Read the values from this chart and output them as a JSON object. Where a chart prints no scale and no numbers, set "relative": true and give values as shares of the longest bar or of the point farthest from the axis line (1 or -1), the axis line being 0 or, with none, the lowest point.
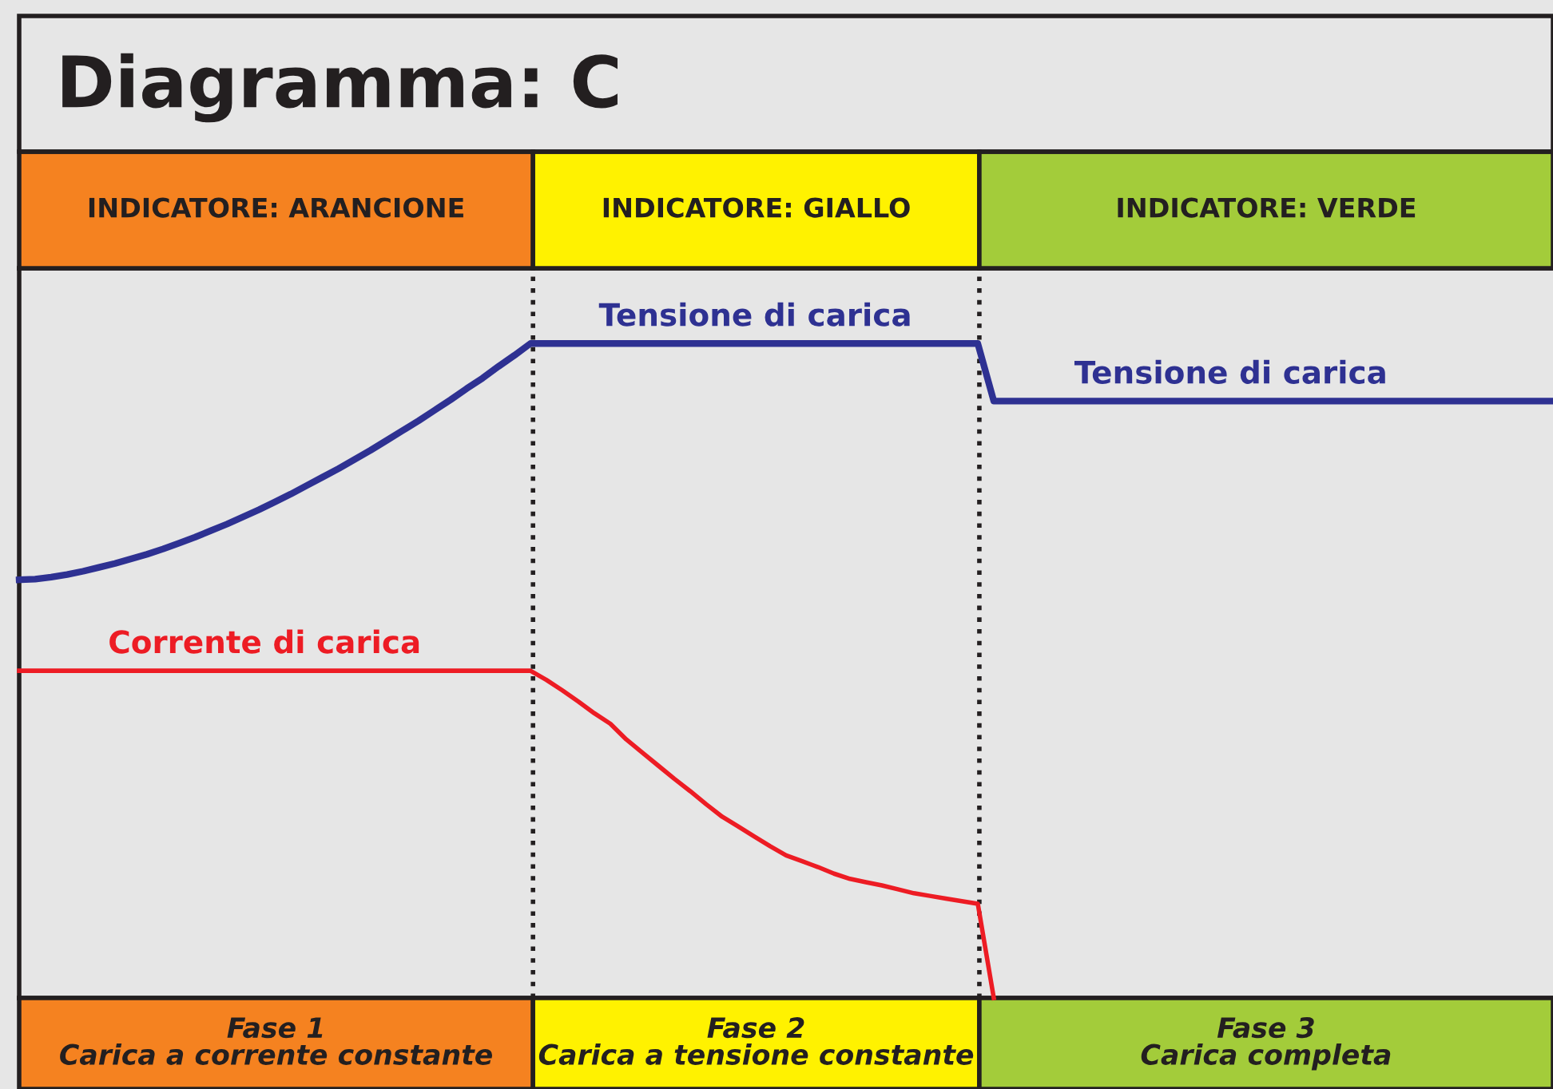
{
  "chart_data": {
    "type": "line",
    "title": "Diagramma: C",
    "relative": true,
    "legend": false,
    "line_style": "solid",
    "categories": [
      null,
      null,
      null,
      null,
      null,
      null,
      null,
      null,
      null,
      null,
      null,
      null,
      null,
      null,
      null,
      null,
      null,
      null,
      null,
      null,
      null,
      null,
      null,
      null,
      null,
      null,
      null,
      null,
      null,
      null,
      null,
      null,
      null,
      null,
      null,
      null,
      null,
      null,
      null,
      null,
      null,
      null,
      null,
      null,
      null,
      null,
      null,
      null,
      null,
      null,
      null,
      null,
      null,
      null,
      null,
      null,
      null,
      null,
      null,
      null,
      null,
      null,
      null,
      null,
      null,
      null,
      null,
      null,
      null,
      null,
      null,
      null,
      null,
      null,
      null,
      null,
      null,
      null,
      null,
      null,
      null,
      null,
      null,
      null,
      null,
      null,
      null,
      null,
      null,
      null,
      null,
      null,
      null,
      null,
      null,
      null,
      null
    ],
    "series": [
      {
        "name": "Tensione di carica",
        "color": "#2e3192",
        "values": [
          0.639,
          0.64,
          0.643,
          0.647,
          0.652,
          0.658,
          0.664,
          0.671,
          0.678,
          0.686,
          0.695,
          0.704,
          0.714,
          0.724,
          0.735,
          0.746,
          0.758,
          0.77,
          0.783,
          0.796,
          0.809,
          0.823,
          0.837,
          0.852,
          0.867,
          0.882,
          0.898,
          0.914,
          0.931,
          0.947,
          0.965,
          0.982,
          1,
          1,
          1,
          1,
          1,
          1,
          1,
          1,
          1,
          1,
          1,
          1,
          1,
          1,
          1,
          1,
          1,
          1,
          1,
          1,
          1,
          1,
          1,
          1,
          1,
          1,
          1,
          1,
          1,
          0.912,
          0.912,
          0.912,
          0.912,
          0.912,
          0.912,
          0.912,
          0.912,
          0.912,
          0.912,
          0.912,
          0.912,
          0.912,
          0.912,
          0.912,
          0.912,
          0.912,
          0.912,
          0.912,
          0.912,
          0.912,
          0.912,
          0.912,
          0.912,
          0.912,
          0.912,
          0.912,
          0.912,
          0.912,
          0.912,
          0.912,
          0.912,
          0.912,
          0.912,
          0.912,
          0.912
        ]
      },
      {
        "name": "Corrente di carica",
        "color": "#ed1c24",
        "values": [
          0.5,
          0.5,
          0.5,
          0.5,
          0.5,
          0.5,
          0.5,
          0.5,
          0.5,
          0.5,
          0.5,
          0.5,
          0.5,
          0.5,
          0.5,
          0.5,
          0.5,
          0.5,
          0.5,
          0.5,
          0.5,
          0.5,
          0.5,
          0.5,
          0.5,
          0.5,
          0.5,
          0.5,
          0.5,
          0.5,
          0.5,
          0.5,
          0.5,
          0.486,
          0.47,
          0.453,
          0.435,
          0.419,
          0.395,
          0.375,
          0.355,
          0.335,
          0.316,
          0.296,
          0.277,
          0.262,
          0.247,
          0.232,
          0.218,
          0.209,
          0.2,
          0.19,
          0.182,
          0.177,
          0.172,
          0.166,
          0.16,
          0.156,
          0.152,
          0.148,
          0.144,
          0,
          null,
          null,
          null,
          null,
          null,
          null,
          null,
          null,
          null,
          null,
          null,
          null,
          null,
          null,
          null,
          null,
          null,
          null,
          null,
          null,
          null,
          null,
          null,
          null,
          null,
          null,
          null,
          null,
          null,
          null,
          null,
          null,
          null,
          null,
          null
        ]
      }
    ],
    "annotations": [
      {
        "text": "Tensione di carica",
        "y": 0.912
      },
      "INDICATORE: ARANCIONE",
      "INDICATORE: GIALLO",
      "INDICATORE: VERDE",
      "Fase 1\nCarica a corrente constante",
      "Fase 2\nCarica a tensione constante",
      "Fase 3\nCarica completa"
    ]
  }
}
